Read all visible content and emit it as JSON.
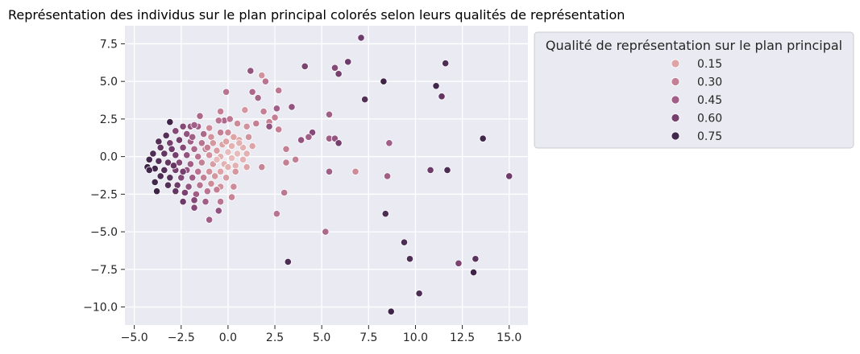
{
  "chart_data": {
    "type": "scatter",
    "title": "Représentation des individus sur le plan principal colorés selon leurs qualités de représentation",
    "xlabel": "",
    "ylabel": "",
    "xlim": [
      -5.5,
      16.0
    ],
    "ylim": [
      -11.2,
      8.7
    ],
    "xticks": [
      -5.0,
      -2.5,
      0.0,
      2.5,
      5.0,
      7.5,
      10.0,
      12.5,
      15.0
    ],
    "xtick_labels": [
      "−5.0",
      "−2.5",
      "0.0",
      "2.5",
      "5.0",
      "7.5",
      "10.0",
      "12.5",
      "15.0"
    ],
    "yticks": [
      7.5,
      5.0,
      2.5,
      0.0,
      -2.5,
      -5.0,
      -7.5,
      -10.0
    ],
    "ytick_labels": [
      "7.5",
      "5.0",
      "2.5",
      "0.0",
      "−2.5",
      "−5.0",
      "−7.5",
      "−10.0"
    ],
    "grid": true,
    "background": "#eaeaf2",
    "legend": {
      "title": "Qualité de représentation sur le plan principal",
      "placement": "outside-right-top",
      "entries": [
        {
          "label": "0.15",
          "color": "#dea3a5"
        },
        {
          "label": "0.30",
          "color": "#c47f94"
        },
        {
          "label": "0.45",
          "color": "#a15e87"
        },
        {
          "label": "0.60",
          "color": "#753f6e"
        },
        {
          "label": "0.75",
          "color": "#43284d"
        }
      ]
    },
    "points": [
      {
        "x": 7.1,
        "y": 7.9,
        "q": 0.62
      },
      {
        "x": 11.6,
        "y": 6.2,
        "q": 0.72
      },
      {
        "x": 6.4,
        "y": 6.3,
        "q": 0.62
      },
      {
        "x": 4.1,
        "y": 6.0,
        "q": 0.58
      },
      {
        "x": 5.7,
        "y": 5.9,
        "q": 0.55
      },
      {
        "x": 5.9,
        "y": 5.5,
        "q": 0.6
      },
      {
        "x": 8.3,
        "y": 5.0,
        "q": 0.78
      },
      {
        "x": 11.1,
        "y": 4.7,
        "q": 0.75
      },
      {
        "x": 11.4,
        "y": 4.0,
        "q": 0.66
      },
      {
        "x": 7.3,
        "y": 3.8,
        "q": 0.7
      },
      {
        "x": 1.2,
        "y": 5.7,
        "q": 0.5
      },
      {
        "x": 2.0,
        "y": 5.0,
        "q": 0.35
      },
      {
        "x": 1.8,
        "y": 5.4,
        "q": 0.22
      },
      {
        "x": 2.7,
        "y": 4.4,
        "q": 0.33
      },
      {
        "x": 1.3,
        "y": 4.3,
        "q": 0.4
      },
      {
        "x": 1.6,
        "y": 3.9,
        "q": 0.42
      },
      {
        "x": -0.1,
        "y": 4.3,
        "q": 0.35
      },
      {
        "x": 3.4,
        "y": 3.3,
        "q": 0.5
      },
      {
        "x": 2.6,
        "y": 3.2,
        "q": 0.45
      },
      {
        "x": 5.4,
        "y": 2.8,
        "q": 0.45
      },
      {
        "x": 1.9,
        "y": 3.0,
        "q": 0.3
      },
      {
        "x": 0.9,
        "y": 3.1,
        "q": 0.2
      },
      {
        "x": 2.5,
        "y": 2.6,
        "q": 0.3
      },
      {
        "x": 13.6,
        "y": 1.2,
        "q": 0.76
      },
      {
        "x": 8.6,
        "y": 0.9,
        "q": 0.45
      },
      {
        "x": 5.4,
        "y": 1.2,
        "q": 0.45
      },
      {
        "x": 5.7,
        "y": 1.2,
        "q": 0.5
      },
      {
        "x": 5.9,
        "y": 0.9,
        "q": 0.6
      },
      {
        "x": 4.5,
        "y": 1.6,
        "q": 0.55
      },
      {
        "x": 4.3,
        "y": 1.3,
        "q": 0.45
      },
      {
        "x": 3.9,
        "y": 1.1,
        "q": 0.5
      },
      {
        "x": 2.7,
        "y": 1.8,
        "q": 0.3
      },
      {
        "x": 2.2,
        "y": 2.3,
        "q": 0.3
      },
      {
        "x": 2.2,
        "y": 2.0,
        "q": 0.5
      },
      {
        "x": 1.0,
        "y": 2.0,
        "q": 0.22
      },
      {
        "x": 1.5,
        "y": 2.2,
        "q": 0.3
      },
      {
        "x": 1.1,
        "y": 1.3,
        "q": 0.22
      },
      {
        "x": 0.6,
        "y": 1.1,
        "q": 0.15
      },
      {
        "x": 3.1,
        "y": 0.5,
        "q": 0.3
      },
      {
        "x": 3.6,
        "y": -0.2,
        "q": 0.3
      },
      {
        "x": 3.1,
        "y": -0.4,
        "q": 0.3
      },
      {
        "x": 1.8,
        "y": -0.7,
        "q": 0.28
      },
      {
        "x": 6.8,
        "y": -1.0,
        "q": 0.25
      },
      {
        "x": 5.4,
        "y": -1.0,
        "q": 0.45
      },
      {
        "x": 8.5,
        "y": -1.3,
        "q": 0.45
      },
      {
        "x": 10.8,
        "y": -0.9,
        "q": 0.62
      },
      {
        "x": 11.7,
        "y": -0.9,
        "q": 0.72
      },
      {
        "x": 15.0,
        "y": -1.3,
        "q": 0.62
      },
      {
        "x": 3.0,
        "y": -2.4,
        "q": 0.33
      },
      {
        "x": 2.6,
        "y": -3.8,
        "q": 0.35
      },
      {
        "x": 8.4,
        "y": -3.8,
        "q": 0.72
      },
      {
        "x": 5.2,
        "y": -5.0,
        "q": 0.4
      },
      {
        "x": 9.4,
        "y": -5.7,
        "q": 0.72
      },
      {
        "x": 3.2,
        "y": -7.0,
        "q": 0.72
      },
      {
        "x": 9.7,
        "y": -6.8,
        "q": 0.72
      },
      {
        "x": 12.3,
        "y": -7.1,
        "q": 0.58
      },
      {
        "x": 13.2,
        "y": -6.8,
        "q": 0.68
      },
      {
        "x": 13.1,
        "y": -7.7,
        "q": 0.78
      },
      {
        "x": 10.2,
        "y": -9.1,
        "q": 0.72
      },
      {
        "x": 8.7,
        "y": -10.3,
        "q": 0.78
      },
      {
        "x": -0.4,
        "y": 3.0,
        "q": 0.3
      },
      {
        "x": -0.2,
        "y": 2.4,
        "q": 0.4
      },
      {
        "x": 0.1,
        "y": 2.5,
        "q": 0.33
      },
      {
        "x": -0.5,
        "y": 2.4,
        "q": 0.35
      },
      {
        "x": 0.5,
        "y": 2.2,
        "q": 0.25
      },
      {
        "x": -1.5,
        "y": 2.7,
        "q": 0.4
      },
      {
        "x": -1.0,
        "y": 1.9,
        "q": 0.25
      },
      {
        "x": -1.6,
        "y": 2.0,
        "q": 0.45
      },
      {
        "x": -2.0,
        "y": 2.0,
        "q": 0.5
      },
      {
        "x": -2.4,
        "y": 2.0,
        "q": 0.55
      },
      {
        "x": -1.8,
        "y": 2.1,
        "q": 0.45
      },
      {
        "x": -2.8,
        "y": 1.7,
        "q": 0.55
      },
      {
        "x": -3.1,
        "y": 2.3,
        "q": 0.78
      },
      {
        "x": -3.3,
        "y": 1.4,
        "q": 0.7
      },
      {
        "x": -2.2,
        "y": 1.5,
        "q": 0.5
      },
      {
        "x": -1.3,
        "y": 1.5,
        "q": 0.4
      },
      {
        "x": -0.9,
        "y": 1.3,
        "q": 0.22
      },
      {
        "x": -0.4,
        "y": 1.6,
        "q": 0.3
      },
      {
        "x": 0.0,
        "y": 1.6,
        "q": 0.25
      },
      {
        "x": 0.3,
        "y": 1.3,
        "q": 0.15
      },
      {
        "x": -3.7,
        "y": 1.0,
        "q": 0.7
      },
      {
        "x": -3.1,
        "y": 0.9,
        "q": 0.6
      },
      {
        "x": -2.6,
        "y": 1.1,
        "q": 0.6
      },
      {
        "x": -2.0,
        "y": 1.0,
        "q": 0.45
      },
      {
        "x": -1.4,
        "y": 0.9,
        "q": 0.35
      },
      {
        "x": -0.8,
        "y": 0.9,
        "q": 0.2
      },
      {
        "x": -0.3,
        "y": 0.8,
        "q": 0.15
      },
      {
        "x": 0.2,
        "y": 0.7,
        "q": 0.12
      },
      {
        "x": 0.8,
        "y": 0.6,
        "q": 0.12
      },
      {
        "x": -3.6,
        "y": 0.6,
        "q": 0.65
      },
      {
        "x": -3.0,
        "y": 0.5,
        "q": 0.62
      },
      {
        "x": -2.4,
        "y": 0.6,
        "q": 0.55
      },
      {
        "x": -1.8,
        "y": 0.5,
        "q": 0.4
      },
      {
        "x": -1.2,
        "y": 0.5,
        "q": 0.3
      },
      {
        "x": -0.6,
        "y": 0.4,
        "q": 0.18
      },
      {
        "x": 0.0,
        "y": 0.3,
        "q": 0.1
      },
      {
        "x": 0.5,
        "y": 0.2,
        "q": 0.1
      },
      {
        "x": -4.0,
        "y": 0.2,
        "q": 0.72
      },
      {
        "x": -3.4,
        "y": 0.2,
        "q": 0.65
      },
      {
        "x": -2.8,
        "y": 0.1,
        "q": 0.6
      },
      {
        "x": -2.2,
        "y": 0.1,
        "q": 0.5
      },
      {
        "x": -1.6,
        "y": 0.0,
        "q": 0.35
      },
      {
        "x": -1.0,
        "y": 0.1,
        "q": 0.22
      },
      {
        "x": -0.4,
        "y": 0.0,
        "q": 0.12
      },
      {
        "x": 0.2,
        "y": -0.1,
        "q": 0.1
      },
      {
        "x": 0.8,
        "y": -0.2,
        "q": 0.12
      },
      {
        "x": -4.2,
        "y": -0.2,
        "q": 0.75
      },
      {
        "x": -3.7,
        "y": -0.3,
        "q": 0.7
      },
      {
        "x": -3.2,
        "y": -0.4,
        "q": 0.65
      },
      {
        "x": -2.6,
        "y": -0.4,
        "q": 0.55
      },
      {
        "x": -2.0,
        "y": -0.5,
        "q": 0.45
      },
      {
        "x": -1.4,
        "y": -0.4,
        "q": 0.3
      },
      {
        "x": -0.8,
        "y": -0.5,
        "q": 0.18
      },
      {
        "x": -0.2,
        "y": -0.5,
        "q": 0.12
      },
      {
        "x": 0.4,
        "y": -0.6,
        "q": 0.12
      },
      {
        "x": 1.0,
        "y": -0.7,
        "q": 0.15
      },
      {
        "x": -4.3,
        "y": -0.7,
        "q": 0.78
      },
      {
        "x": -3.9,
        "y": -0.8,
        "q": 0.75
      },
      {
        "x": -3.4,
        "y": -0.9,
        "q": 0.7
      },
      {
        "x": -2.8,
        "y": -0.9,
        "q": 0.6
      },
      {
        "x": -2.2,
        "y": -0.9,
        "q": 0.5
      },
      {
        "x": -1.6,
        "y": -1.0,
        "q": 0.35
      },
      {
        "x": -1.0,
        "y": -1.0,
        "q": 0.22
      },
      {
        "x": -0.4,
        "y": -1.0,
        "q": 0.15
      },
      {
        "x": 0.4,
        "y": -1.0,
        "q": 0.2
      },
      {
        "x": -4.2,
        "y": -0.9,
        "q": 0.75
      },
      {
        "x": -3.6,
        "y": -1.3,
        "q": 0.72
      },
      {
        "x": -3.1,
        "y": -1.4,
        "q": 0.68
      },
      {
        "x": -2.5,
        "y": -1.4,
        "q": 0.55
      },
      {
        "x": -1.9,
        "y": -1.4,
        "q": 0.45
      },
      {
        "x": -1.3,
        "y": -1.4,
        "q": 0.3
      },
      {
        "x": -0.7,
        "y": -1.3,
        "q": 0.2
      },
      {
        "x": -0.1,
        "y": -1.4,
        "q": 0.18
      },
      {
        "x": -3.9,
        "y": -1.7,
        "q": 0.75
      },
      {
        "x": -3.2,
        "y": -1.9,
        "q": 0.7
      },
      {
        "x": -2.7,
        "y": -1.9,
        "q": 0.62
      },
      {
        "x": -2.1,
        "y": -2.0,
        "q": 0.5
      },
      {
        "x": -1.5,
        "y": -1.9,
        "q": 0.35
      },
      {
        "x": -0.9,
        "y": -1.8,
        "q": 0.25
      },
      {
        "x": -0.4,
        "y": -2.0,
        "q": 0.22
      },
      {
        "x": 0.3,
        "y": -2.0,
        "q": 0.25
      },
      {
        "x": -3.8,
        "y": -2.3,
        "q": 0.78
      },
      {
        "x": -2.8,
        "y": -2.3,
        "q": 0.65
      },
      {
        "x": -2.3,
        "y": -2.4,
        "q": 0.58
      },
      {
        "x": -1.7,
        "y": -2.5,
        "q": 0.45
      },
      {
        "x": -1.1,
        "y": -2.3,
        "q": 0.35
      },
      {
        "x": -0.6,
        "y": -2.2,
        "q": 0.3
      },
      {
        "x": 0.2,
        "y": -2.7,
        "q": 0.28
      },
      {
        "x": -2.4,
        "y": -3.0,
        "q": 0.62
      },
      {
        "x": -1.8,
        "y": -2.9,
        "q": 0.55
      },
      {
        "x": -1.2,
        "y": -3.0,
        "q": 0.45
      },
      {
        "x": -0.4,
        "y": -3.0,
        "q": 0.35
      },
      {
        "x": -1.8,
        "y": -3.4,
        "q": 0.55
      },
      {
        "x": -0.5,
        "y": -3.6,
        "q": 0.5
      },
      {
        "x": -1.0,
        "y": -4.2,
        "q": 0.45
      },
      {
        "x": -2.4,
        "y": -1.0,
        "q": 0.6
      },
      {
        "x": -2.9,
        "y": -0.6,
        "q": 0.65
      },
      {
        "x": -1.9,
        "y": 1.3,
        "q": 0.45
      },
      {
        "x": -1.1,
        "y": 0.6,
        "q": 0.3
      },
      {
        "x": -0.1,
        "y": 1.0,
        "q": 0.15
      },
      {
        "x": 0.6,
        "y": 0.9,
        "q": 0.12
      },
      {
        "x": 1.3,
        "y": 0.7,
        "q": 0.15
      },
      {
        "x": 1.0,
        "y": 0.2,
        "q": 0.12
      },
      {
        "x": -0.6,
        "y": -0.2,
        "q": 0.1
      },
      {
        "x": 0.0,
        "y": -0.7,
        "q": 0.12
      }
    ]
  }
}
